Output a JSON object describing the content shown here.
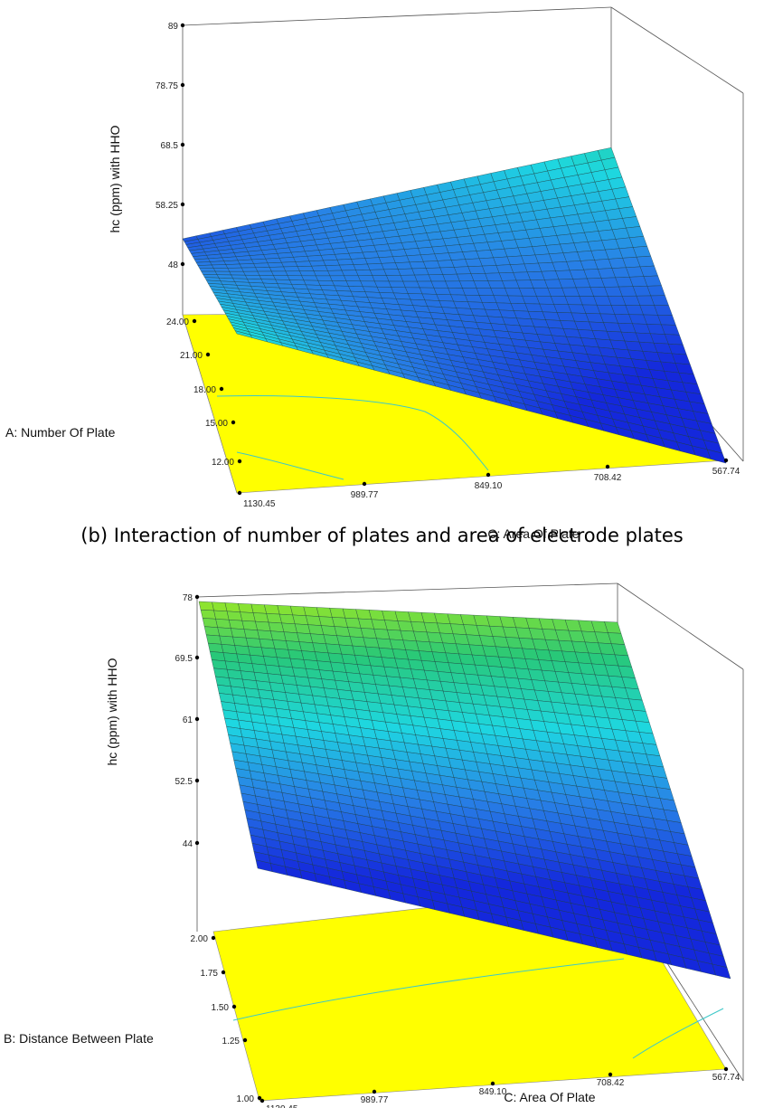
{
  "chart_data": [
    {
      "type": "surface",
      "zlabel": "hc (ppm) with HHO",
      "xlabel": "A: Number Of Plate",
      "ylabel": "C: Area Of Plate",
      "z_ticks": [
        "89",
        "78.75",
        "68.5",
        "58.25",
        "48"
      ],
      "x_ticks": [
        "24.00",
        "21.00",
        "18.00",
        "15.00",
        "12.00"
      ],
      "y_ticks": [
        "1130.45",
        "989.77",
        "849.10",
        "708.42",
        "567.74"
      ],
      "zlim": [
        48,
        89
      ],
      "xlim": [
        12,
        24
      ],
      "ylim": [
        567.74,
        1130.45
      ],
      "corners": {
        "back_left": 54,
        "front_left": 73,
        "front_right": 36,
        "back_right": 74
      },
      "center": 58,
      "caption": "(b) Interaction of number of plates and area of electrode plates"
    },
    {
      "type": "surface",
      "zlabel": "hc (ppm) with HHO",
      "xlabel": "B: Distance Between Plate",
      "ylabel": "C: Area Of Plate",
      "z_ticks": [
        "78",
        "69.5",
        "61",
        "52.5",
        "44"
      ],
      "x_ticks": [
        "2.00",
        "1.75",
        "1.50",
        "1.25",
        "1.00"
      ],
      "y_ticks": [
        "1130.45",
        "989.77",
        "849.10",
        "708.42",
        "567.74"
      ],
      "zlim": [
        44,
        78
      ],
      "xlim": [
        1.0,
        2.0
      ],
      "ylim": [
        567.74,
        1130.45
      ],
      "corners": {
        "back_left": 78,
        "front_left": 44.5,
        "front_right": 34,
        "back_right": 75
      },
      "center": 57
    }
  ]
}
